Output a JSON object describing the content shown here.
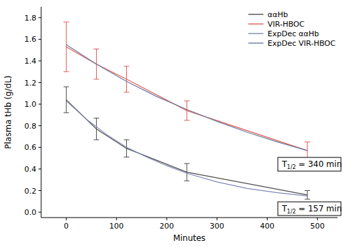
{
  "chart_data": {
    "type": "line",
    "x_label": "Minutes",
    "y_label": "Plasma tHb (g/dL)",
    "xlim": [
      -50,
      540
    ],
    "ylim": [
      -0.05,
      1.9
    ],
    "xticks": [
      0,
      100,
      200,
      300,
      400,
      500
    ],
    "yticks": [
      {
        "value": 0,
        "label": "0.0"
      },
      0.2,
      0.4,
      0.6,
      0.8,
      {
        "value": 1,
        "label": "1.0"
      },
      1.2,
      1.4,
      1.6,
      1.8
    ],
    "grid": false,
    "legend": "upper right",
    "series": [
      {
        "name": "ααHb",
        "color": "#4d4d4d",
        "line_style": "solid",
        "x": [
          0,
          60,
          120,
          240,
          480
        ],
        "values": [
          1.04,
          0.77,
          0.59,
          0.37,
          0.16
        ],
        "errors": [
          0.12,
          0.1,
          0.08,
          0.08,
          0.04
        ]
      },
      {
        "name": "VIR-HBOC",
        "color": "#e05a5a",
        "line_style": "solid",
        "x": [
          0,
          60,
          120,
          240,
          480
        ],
        "values": [
          1.53,
          1.37,
          1.23,
          0.94,
          0.57
        ],
        "errors": [
          0.23,
          0.14,
          0.12,
          0.09,
          0.08
        ]
      },
      {
        "name": "ExpDec ααHb",
        "color": "#7f86b8",
        "line_style": "solid",
        "x": [
          0,
          40,
          80,
          120,
          160,
          200,
          240,
          300,
          360,
          420,
          480
        ],
        "values": [
          1.03,
          0.86,
          0.72,
          0.6,
          0.51,
          0.43,
          0.36,
          0.28,
          0.22,
          0.18,
          0.15
        ]
      },
      {
        "name": "ExpDec VIR-HBOC",
        "color": "#6b7a99",
        "line_style": "solid",
        "x": [
          0,
          60,
          120,
          180,
          240,
          300,
          360,
          420,
          480
        ],
        "values": [
          1.55,
          1.37,
          1.21,
          1.07,
          0.95,
          0.84,
          0.74,
          0.65,
          0.57
        ]
      }
    ],
    "annotations": [
      {
        "base": "T",
        "subscript": "1/2",
        "text": " = 340 min"
      },
      {
        "base": "T",
        "subscript": "1/2",
        "text": " = 157 min"
      }
    ]
  }
}
